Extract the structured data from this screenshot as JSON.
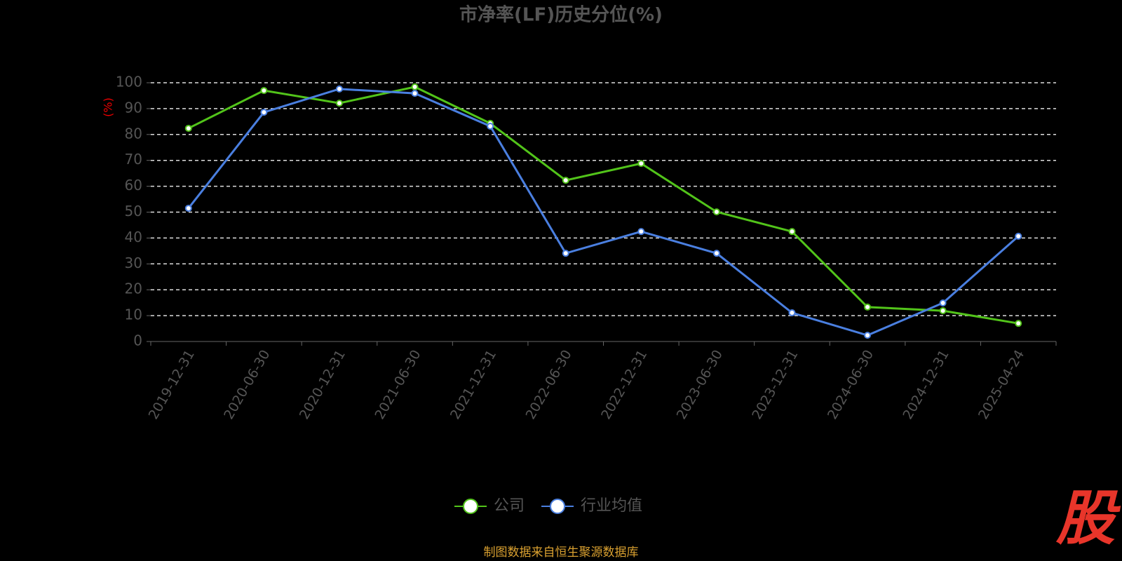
{
  "chart_data": {
    "type": "line",
    "title": "市净率(LF)历史分位(%)",
    "y_label": "(%)",
    "categories": [
      "2019-12-31",
      "2020-06-30",
      "2020-12-31",
      "2021-06-30",
      "2021-12-31",
      "2022-06-30",
      "2022-12-31",
      "2023-06-30",
      "2023-12-31",
      "2024-06-30",
      "2024-12-31",
      "2025-04-24"
    ],
    "series": [
      {
        "name": "公司",
        "color": "#52c41a",
        "values": [
          82.4,
          97.0,
          92.1,
          98.4,
          84.3,
          62.3,
          68.8,
          50.1,
          42.5,
          13.3,
          11.9,
          7.0
        ]
      },
      {
        "name": "行业均值",
        "color": "#4a7fe0",
        "values": [
          51.5,
          88.6,
          97.6,
          95.9,
          83.2,
          34.1,
          42.5,
          34.1,
          11.1,
          2.4,
          14.9,
          40.7
        ]
      }
    ],
    "ylim": [
      0,
      100
    ],
    "yticks": [
      0,
      10,
      20,
      30,
      40,
      50,
      60,
      70,
      80,
      90,
      100
    ],
    "grid": true,
    "legend": "bottom",
    "source": "制图数据来自恒生聚源数据库",
    "logo": "股"
  }
}
